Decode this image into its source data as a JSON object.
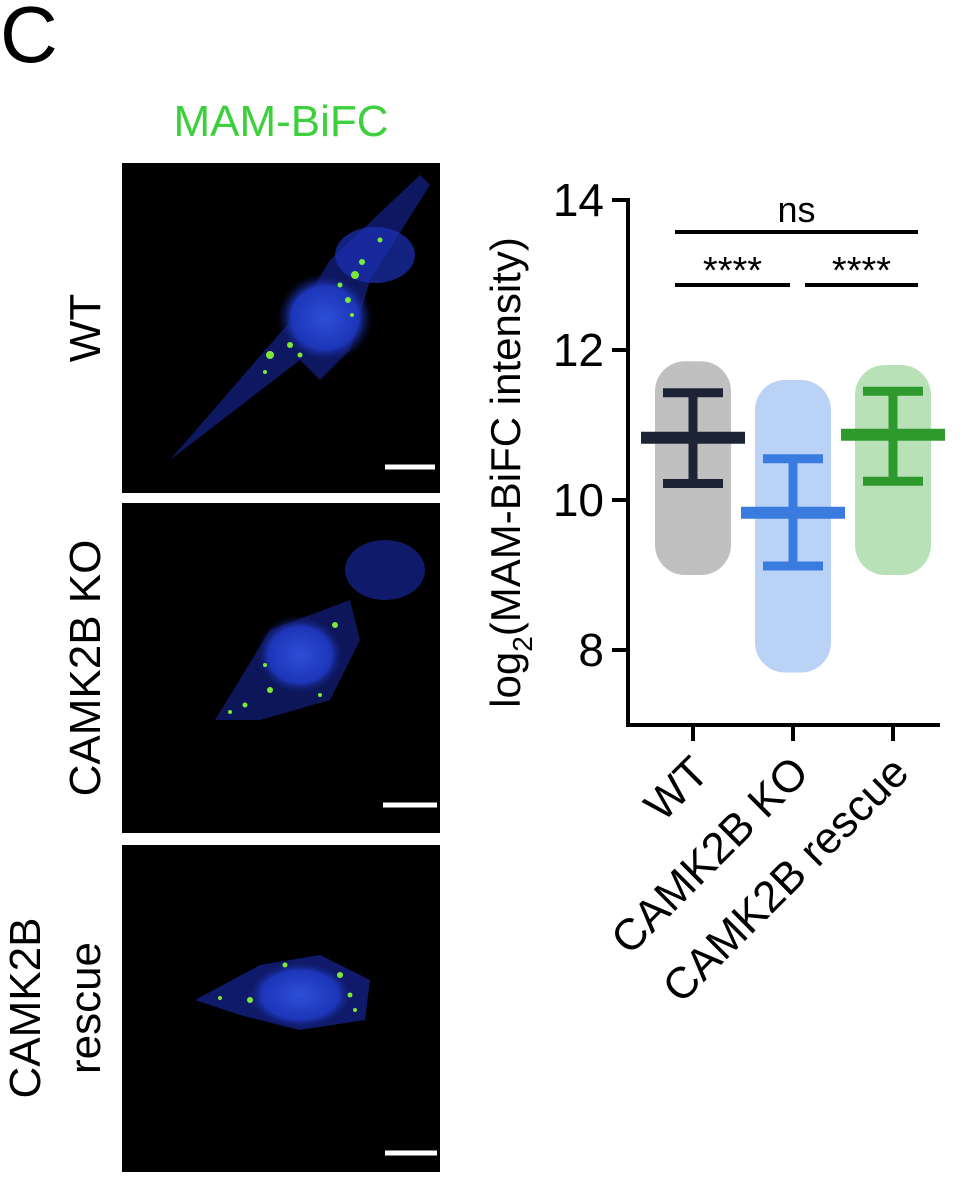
{
  "chart_data": {
    "type": "dotplot",
    "panel_label": "C",
    "image_title": "MAM-BiFC",
    "image_rows": [
      [
        "WT"
      ],
      [
        "CAMK2B KO"
      ],
      [
        "CAMK2B",
        "rescue"
      ]
    ],
    "ylabel": {
      "main": "log",
      "sub": "2",
      "rest": "(MAM-BiFC intensity)"
    },
    "categories": [
      "WT",
      "CAMK2B KO",
      "CAMK2B rescue"
    ],
    "colors": [
      "#4a4a4a",
      "#3a7fe6",
      "#33a833"
    ],
    "mean_colors": [
      "#1c2436",
      "#3a7be0",
      "#2e9a2e"
    ],
    "values": [
      10.83,
      9.83,
      10.87
    ],
    "error_low": [
      10.22,
      9.12,
      10.25
    ],
    "error_high": [
      11.43,
      10.55,
      11.45
    ],
    "range_min": [
      9.0,
      7.7,
      9.0
    ],
    "range_max": [
      11.85,
      11.6,
      11.8
    ],
    "ylim": [
      7,
      14
    ],
    "yticks": [
      8,
      10,
      12,
      14
    ],
    "comparisons": [
      {
        "groups": [
          "WT",
          "CAMK2B rescue"
        ],
        "label": "ns"
      },
      {
        "groups": [
          "WT",
          "CAMK2B KO"
        ],
        "label": "****"
      },
      {
        "groups": [
          "CAMK2B KO",
          "CAMK2B rescue"
        ],
        "label": "****"
      }
    ]
  }
}
